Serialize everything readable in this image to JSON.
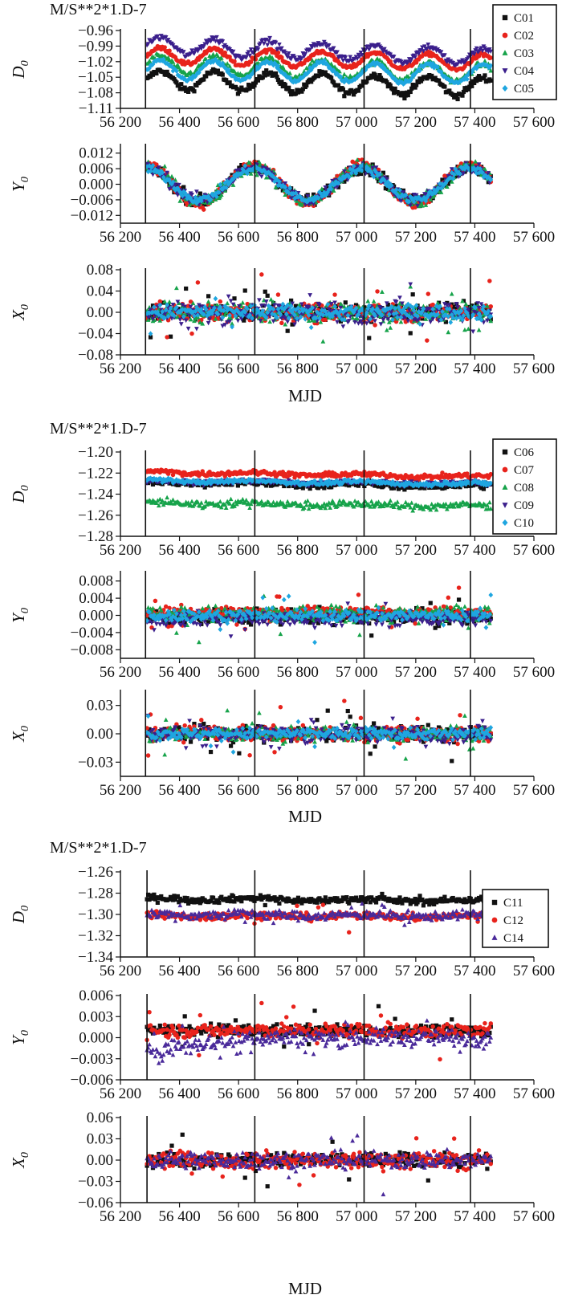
{
  "chart_data": [
    {
      "type": "scatter",
      "title": "M/S**2*1.D-7",
      "xlabel": "MJD",
      "xlim": [
        56200,
        57600
      ],
      "xticks": [
        56200,
        56400,
        56600,
        56800,
        57000,
        57200,
        57400,
        57600
      ],
      "xtick_labels": [
        "56 200",
        "56 400",
        "56 600",
        "56 800",
        "57 000",
        "57 200",
        "57 400",
        "57 600"
      ],
      "vlines": [
        56285,
        56655,
        57025,
        57385
      ],
      "series_names": [
        "C01",
        "C02",
        "C03",
        "C04",
        "C05"
      ],
      "series_colors": [
        "#111111",
        "#e8231c",
        "#16a34a",
        "#3b1f8c",
        "#1fa6e0"
      ],
      "series_markers": [
        "square",
        "circle",
        "triangle-up",
        "triangle-down",
        "diamond"
      ],
      "legend_position": "top-right",
      "panels": [
        {
          "ylabel": "D",
          "ylabel_sub": "0",
          "ylim": [
            -1.11,
            -0.96
          ],
          "yticks": [
            -0.96,
            -0.99,
            -1.02,
            -1.05,
            -1.08,
            -1.11
          ],
          "ytick_labels": [
            "-0.96",
            "-0.99",
            "-1.02",
            "-1.05",
            "-1.08",
            "-1.11"
          ],
          "series": [
            {
              "model": "sin",
              "base": -1.055,
              "amp": 0.018,
              "period": 182,
              "phase": 56290,
              "trend": -1.2e-05,
              "noise": 0.003
            },
            {
              "model": "sin",
              "base": -1.008,
              "amp": 0.015,
              "period": 182,
              "phase": 56290,
              "trend": -1.2e-05,
              "noise": 0.002
            },
            {
              "model": "sin",
              "base": -1.025,
              "amp": 0.017,
              "period": 182,
              "phase": 56290,
              "trend": -1.5e-05,
              "noise": 0.003
            },
            {
              "model": "sin",
              "base": -0.988,
              "amp": 0.016,
              "period": 182,
              "phase": 56290,
              "trend": -2e-05,
              "noise": 0.003
            },
            {
              "model": "sin",
              "base": -1.035,
              "amp": 0.018,
              "period": 182,
              "phase": 56290,
              "trend": -8e-06,
              "noise": 0.002
            }
          ]
        },
        {
          "ylabel": "Y",
          "ylabel_sub": "0",
          "ylim": [
            -0.015,
            0.015
          ],
          "yticks": [
            0.012,
            0.006,
            0.0,
            -0.006,
            -0.012
          ],
          "ytick_labels": [
            "0.012",
            "0.006",
            "0.000",
            "-0.006",
            "-0.012"
          ],
          "series": [
            {
              "model": "sin",
              "base": 0,
              "amp": 0.0065,
              "period": 365,
              "phase": 56195,
              "noise": 0.0012
            },
            {
              "model": "sin",
              "base": 0,
              "amp": 0.0075,
              "period": 365,
              "phase": 56195,
              "noise": 0.001
            },
            {
              "model": "sin",
              "base": 0,
              "amp": 0.0065,
              "period": 365,
              "phase": 56195,
              "noise": 0.0014
            },
            {
              "model": "sin",
              "base": 0,
              "amp": 0.0062,
              "period": 365,
              "phase": 56195,
              "noise": 0.0012
            },
            {
              "model": "sin",
              "base": 0,
              "amp": 0.006,
              "period": 365,
              "phase": 56195,
              "noise": 0.0008
            }
          ]
        },
        {
          "ylabel": "X",
          "ylabel_sub": "0",
          "ylim": [
            -0.08,
            0.08
          ],
          "yticks": [
            0.08,
            0.04,
            0.0,
            -0.04,
            -0.08
          ],
          "ytick_labels": [
            "0.08",
            "0.04",
            "0.00",
            "-0.04",
            "-0.08"
          ],
          "series": [
            {
              "model": "noise",
              "base": 0,
              "noise": 0.008,
              "spike": 0.05
            },
            {
              "model": "noise",
              "base": 0,
              "noise": 0.009,
              "spike": 0.06
            },
            {
              "model": "noise",
              "base": 0,
              "noise": 0.01,
              "spike": 0.05
            },
            {
              "model": "noise",
              "base": 0,
              "noise": 0.01,
              "spike": 0.04
            },
            {
              "model": "noise",
              "base": 0,
              "noise": 0.007,
              "spike": 0.03
            }
          ]
        }
      ]
    },
    {
      "type": "scatter",
      "title": "M/S**2*1.D-7",
      "xlabel": "MJD",
      "xlim": [
        56200,
        57600
      ],
      "xticks": [
        56200,
        56400,
        56600,
        56800,
        57000,
        57200,
        57400,
        57600
      ],
      "xtick_labels": [
        "56 200",
        "56 400",
        "56 600",
        "56 800",
        "57 000",
        "57 200",
        "57 400",
        "57 600"
      ],
      "vlines": [
        56285,
        56655,
        57025,
        57385
      ],
      "series_names": [
        "C06",
        "C07",
        "C08",
        "C09",
        "C10"
      ],
      "series_colors": [
        "#111111",
        "#e8231c",
        "#16a34a",
        "#3b1f8c",
        "#1fa6e0"
      ],
      "series_markers": [
        "square",
        "circle",
        "triangle-up",
        "triangle-down",
        "diamond"
      ],
      "legend_position": "top-right",
      "panels": [
        {
          "ylabel": "D",
          "ylabel_sub": "0",
          "ylim": [
            -1.28,
            -1.2
          ],
          "yticks": [
            -1.2,
            -1.22,
            -1.24,
            -1.26,
            -1.28
          ],
          "ytick_labels": [
            "-1.20",
            "-1.22",
            "-1.24",
            "-1.26",
            "-1.28"
          ],
          "series": [
            {
              "model": "sin",
              "base": -1.229,
              "amp": 0.001,
              "period": 365,
              "phase": 56200,
              "trend": -3e-06,
              "noise": 0.0015
            },
            {
              "model": "sin",
              "base": -1.219,
              "amp": 0.001,
              "period": 365,
              "phase": 56200,
              "trend": -4e-06,
              "noise": 0.0012
            },
            {
              "model": "sin",
              "base": -1.248,
              "amp": 0.001,
              "period": 365,
              "phase": 56200,
              "trend": -3e-06,
              "noise": 0.0018
            },
            {
              "model": "sin",
              "base": -1.228,
              "amp": 0.001,
              "period": 365,
              "phase": 56200,
              "trend": -2e-06,
              "noise": 0.001
            },
            {
              "model": "sin",
              "base": -1.227,
              "amp": 0.001,
              "period": 365,
              "phase": 56200,
              "trend": -3e-06,
              "noise": 0.001
            }
          ]
        },
        {
          "ylabel": "Y",
          "ylabel_sub": "0",
          "ylim": [
            -0.01,
            0.01
          ],
          "yticks": [
            0.008,
            0.004,
            0.0,
            -0.004,
            -0.008
          ],
          "ytick_labels": [
            "0.008",
            "0.004",
            "0.000",
            "-0.004",
            "-0.008"
          ],
          "series": [
            {
              "model": "noise",
              "base": -0.0002,
              "noise": 0.0009,
              "spike": 0.004
            },
            {
              "model": "noise",
              "base": 0.0008,
              "noise": 0.0006,
              "spike": 0.005
            },
            {
              "model": "noise",
              "base": 0.0002,
              "noise": 0.001,
              "spike": 0.005
            },
            {
              "model": "noise",
              "base": -0.0008,
              "noise": 0.0008,
              "spike": 0.004
            },
            {
              "model": "noise",
              "base": 0.0,
              "noise": 0.0007,
              "spike": 0.006
            }
          ]
        },
        {
          "ylabel": "X",
          "ylabel_sub": "0",
          "ylim": [
            -0.045,
            0.045
          ],
          "yticks": [
            0.03,
            0.0,
            -0.03
          ],
          "ytick_labels": [
            "0.03",
            "0.00",
            "-0.03"
          ],
          "series": [
            {
              "model": "noise",
              "base": 0,
              "noise": 0.004,
              "spike": 0.03
            },
            {
              "model": "noise",
              "base": 0,
              "noise": 0.004,
              "spike": 0.03
            },
            {
              "model": "noise",
              "base": 0,
              "noise": 0.004,
              "spike": 0.025
            },
            {
              "model": "noise",
              "base": 0,
              "noise": 0.004,
              "spike": 0.02
            },
            {
              "model": "noise",
              "base": 0,
              "noise": 0.003,
              "spike": 0.015
            }
          ]
        }
      ]
    },
    {
      "type": "scatter",
      "title": "M/S**2*1.D-7",
      "xlabel": "MJD",
      "xlim": [
        56200,
        57600
      ],
      "xticks": [
        56200,
        56400,
        56600,
        56800,
        57000,
        57200,
        57400,
        57600
      ],
      "xtick_labels": [
        "56 200",
        "56 400",
        "56 600",
        "56 800",
        "57 000",
        "57 200",
        "57 400",
        "57 600"
      ],
      "vlines": [
        56290,
        56655,
        57025,
        57385
      ],
      "series_names": [
        "C11",
        "C12",
        "C14"
      ],
      "series_colors": [
        "#111111",
        "#e8231c",
        "#4a2a9a"
      ],
      "series_markers": [
        "square",
        "circle",
        "triangle-up"
      ],
      "legend_position": "right",
      "panels": [
        {
          "ylabel": "D",
          "ylabel_sub": "0",
          "ylim": [
            -1.34,
            -1.26
          ],
          "yticks": [
            -1.26,
            -1.28,
            -1.3,
            -1.32,
            -1.34
          ],
          "ytick_labels": [
            "-1.26",
            "-1.28",
            "-1.30",
            "-1.32",
            "-1.34"
          ],
          "series": [
            {
              "model": "sin",
              "base": -1.285,
              "amp": 0.001,
              "period": 365,
              "phase": 56200,
              "trend": -2e-06,
              "noise": 0.0015,
              "spike": 0.006
            },
            {
              "model": "sin",
              "base": -1.301,
              "amp": 0.001,
              "period": 365,
              "phase": 56200,
              "trend": -1e-06,
              "noise": 0.0018,
              "spike": 0.015
            },
            {
              "model": "sin",
              "base": -1.3,
              "amp": 0.001,
              "period": 365,
              "phase": 56200,
              "trend": -1e-06,
              "noise": 0.002,
              "spike": 0.012
            }
          ]
        },
        {
          "ylabel": "Y",
          "ylabel_sub": "0",
          "ylim": [
            -0.006,
            0.006
          ],
          "yticks": [
            0.006,
            0.003,
            0.0,
            -0.003,
            -0.006
          ],
          "ytick_labels": [
            "0.006",
            "0.003",
            "0.000",
            "-0.003",
            "-0.006"
          ],
          "series": [
            {
              "model": "noise",
              "base": 0.001,
              "noise": 0.0004,
              "spike": 0.003
            },
            {
              "model": "noise",
              "base": 0.001,
              "noise": 0.0005,
              "spike": 0.004
            },
            {
              "model": "ramp",
              "start": -0.0018,
              "end": 0.0,
              "ramp_until": 56660,
              "noise": 0.0006,
              "spike": 0.003
            }
          ]
        },
        {
          "ylabel": "X",
          "ylabel_sub": "0",
          "ylim": [
            -0.06,
            0.06
          ],
          "yticks": [
            0.06,
            0.03,
            0.0,
            -0.03,
            -0.06
          ],
          "ytick_labels": [
            "0.06",
            "0.03",
            "0.00",
            "-0.03",
            "-0.06"
          ],
          "series": [
            {
              "model": "noise",
              "base": 0,
              "noise": 0.005,
              "spike": 0.03
            },
            {
              "model": "noise",
              "base": 0,
              "noise": 0.006,
              "spike": 0.035
            },
            {
              "model": "noise",
              "base": 0,
              "noise": 0.006,
              "spike": 0.045
            }
          ]
        }
      ]
    }
  ]
}
